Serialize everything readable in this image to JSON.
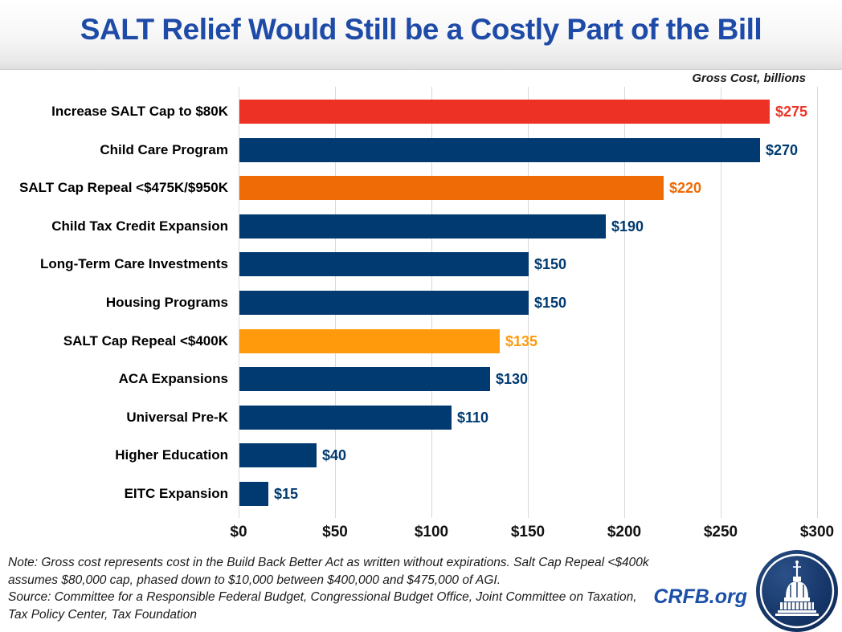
{
  "header": {
    "title": "SALT Relief Would Still be a Costly Part of the Bill",
    "unit_label": "Gross Cost, billions"
  },
  "chart_data": {
    "type": "bar",
    "orientation": "horizontal",
    "title": "SALT Relief Would Still be a Costly Part of the Bill",
    "unit_label": "Gross Cost, billions",
    "xlim": [
      0,
      300
    ],
    "grid": true,
    "tick_interval": 50,
    "xticks": [
      "$0",
      "$50",
      "$100",
      "$150",
      "$200",
      "$250",
      "$300"
    ],
    "categories": [
      "Increase SALT Cap to $80K",
      "Child Care Program",
      "SALT Cap Repeal <$475K/$950K",
      "Child Tax Credit Expansion",
      "Long-Term Care Investments",
      "Housing Programs",
      "SALT Cap Repeal <$400K",
      "ACA Expansions",
      "Universal Pre-K",
      "Higher Education",
      "EITC Expansion"
    ],
    "values": [
      275,
      270,
      220,
      190,
      150,
      150,
      135,
      130,
      110,
      40,
      15
    ],
    "value_labels": [
      "$275",
      "$270",
      "$220",
      "$190",
      "$150",
      "$150",
      "$135",
      "$130",
      "$110",
      "$40",
      "$15"
    ],
    "colors": [
      "#ED3125",
      "#003A70",
      "#EE6B06",
      "#003A70",
      "#003A70",
      "#003A70",
      "#FE9A0B",
      "#003A70",
      "#003A70",
      "#003A70",
      "#003A70"
    ]
  },
  "footer": {
    "note": "Note: Gross cost represents cost in the Build Back Better Act as written without expirations. Salt Cap Repeal <$400k assumes $80,000 cap, phased down to $10,000 between $400,000 and $475,000 of AGI.",
    "source": "Source: Committee for a Responsible Federal Budget, Congressional Budget Office, Joint Committee on Taxation, Tax Policy Center, Tax Foundation",
    "brand": "CRFB.org",
    "logo_icon": "capitol-dome-icon"
  },
  "style_colors": {
    "title_blue": "#1F4BA8",
    "grid_gray": "#D9D9D9",
    "axis_text": "#111111",
    "navy": "#003A70",
    "red": "#ED3125",
    "orange": "#EE6B06",
    "amber": "#FE9A0B",
    "brand_blue": "#1B4FA8",
    "logo_navy": "#15356B"
  }
}
